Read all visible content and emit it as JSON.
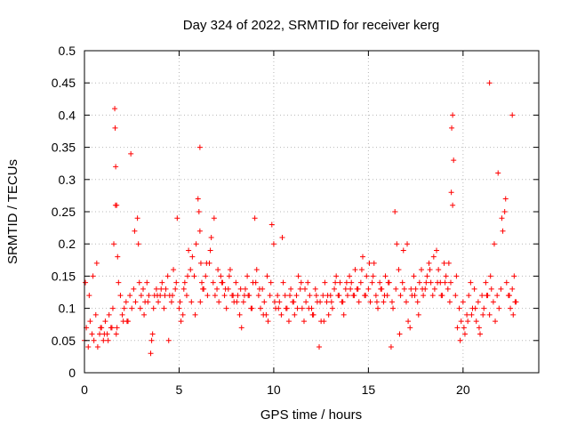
{
  "chart_data": {
    "type": "scatter",
    "title": "Day 324 of 2022, SRMTID for receiver kerg",
    "xlabel": "GPS time / hours",
    "ylabel": "SRMTID / TECUs",
    "xlim": [
      0,
      24
    ],
    "ylim": [
      0,
      0.5
    ],
    "x_ticks": [
      0,
      5,
      10,
      15,
      20
    ],
    "x_tick_labels": [
      "0",
      "5",
      "10",
      "15",
      "20"
    ],
    "y_ticks": [
      0,
      0.05,
      0.1,
      0.15,
      0.2,
      0.25,
      0.3,
      0.35,
      0.4,
      0.45,
      0.5
    ],
    "y_tick_labels": [
      "0",
      "0.05",
      "0.1",
      "0.15",
      "0.2",
      "0.25",
      "0.3",
      "0.35",
      "0.4",
      "0.45",
      "0.5"
    ],
    "grid": true,
    "marker": "plus",
    "color": "#ff0000",
    "series": [
      {
        "name": "SRMTID",
        "x": [
          0.0,
          0.1,
          0.2,
          0.3,
          0.4,
          0.5,
          0.6,
          0.7,
          0.8,
          0.9,
          1.0,
          1.1,
          1.2,
          1.3,
          1.4,
          1.5,
          1.55,
          1.6,
          1.62,
          1.65,
          1.7,
          1.75,
          1.8,
          1.9,
          2.0,
          2.1,
          2.2,
          2.3,
          2.4,
          2.5,
          2.6,
          2.7,
          2.8,
          2.85,
          2.9,
          3.0,
          3.1,
          3.2,
          3.3,
          3.4,
          3.5,
          3.55,
          3.6,
          3.7,
          3.8,
          3.9,
          4.0,
          4.1,
          4.2,
          4.3,
          4.4,
          4.5,
          4.6,
          4.7,
          4.8,
          4.9,
          5.0,
          5.1,
          5.2,
          5.3,
          5.4,
          5.5,
          5.6,
          5.7,
          5.8,
          5.9,
          6.0,
          6.05,
          6.1,
          6.15,
          6.2,
          6.3,
          6.4,
          6.5,
          6.6,
          6.7,
          6.8,
          6.9,
          7.0,
          7.1,
          7.2,
          7.3,
          7.4,
          7.5,
          7.6,
          7.7,
          7.8,
          7.9,
          8.0,
          8.1,
          8.2,
          8.3,
          8.4,
          8.5,
          8.6,
          8.7,
          8.8,
          8.9,
          9.0,
          9.1,
          9.2,
          9.3,
          9.4,
          9.5,
          9.6,
          9.7,
          9.8,
          9.9,
          10.0,
          10.1,
          10.2,
          10.3,
          10.4,
          10.5,
          10.6,
          10.7,
          10.8,
          10.9,
          11.0,
          11.1,
          11.2,
          11.3,
          11.4,
          11.5,
          11.6,
          11.7,
          11.8,
          11.9,
          12.0,
          12.1,
          12.2,
          12.3,
          12.4,
          12.5,
          12.6,
          12.7,
          12.8,
          12.9,
          13.0,
          13.1,
          13.2,
          13.3,
          13.4,
          13.5,
          13.6,
          13.7,
          13.8,
          13.9,
          14.0,
          14.1,
          14.2,
          14.3,
          14.4,
          14.5,
          14.6,
          14.7,
          14.8,
          14.9,
          15.0,
          15.1,
          15.2,
          15.3,
          15.4,
          15.5,
          15.6,
          15.7,
          15.8,
          15.9,
          16.0,
          16.1,
          16.2,
          16.3,
          16.4,
          16.5,
          16.6,
          16.7,
          16.8,
          16.9,
          17.0,
          17.1,
          17.2,
          17.3,
          17.4,
          17.5,
          17.6,
          17.7,
          17.8,
          17.9,
          18.0,
          18.1,
          18.2,
          18.3,
          18.4,
          18.5,
          18.6,
          18.7,
          18.8,
          18.9,
          19.0,
          19.1,
          19.2,
          19.3,
          19.35,
          19.4,
          19.5,
          19.6,
          19.7,
          19.8,
          19.9,
          20.0,
          20.1,
          20.2,
          20.3,
          20.4,
          20.5,
          20.6,
          20.7,
          20.8,
          20.9,
          21.0,
          21.1,
          21.2,
          21.3,
          21.4,
          21.5,
          21.6,
          21.7,
          21.8,
          21.9,
          22.0,
          22.1,
          22.2,
          22.3,
          22.4,
          22.5,
          22.6,
          22.7,
          22.8,
          0.05,
          0.25,
          0.45,
          0.65,
          0.85,
          1.05,
          1.25,
          1.45,
          1.68,
          1.72,
          2.05,
          2.25,
          2.45,
          2.65,
          2.95,
          3.15,
          3.35,
          3.65,
          3.85,
          4.05,
          4.25,
          4.45,
          4.65,
          4.85,
          5.05,
          5.25,
          5.45,
          5.65,
          5.85,
          6.12,
          6.25,
          6.45,
          6.65,
          6.85,
          7.05,
          7.25,
          7.45,
          7.65,
          7.85,
          8.05,
          8.25,
          8.45,
          8.65,
          8.85,
          9.05,
          9.25,
          9.45,
          9.65,
          9.85,
          10.05,
          10.25,
          10.45,
          10.65,
          10.85,
          11.05,
          11.25,
          11.45,
          11.65,
          11.85,
          12.05,
          12.25,
          12.45,
          12.65,
          12.85,
          13.05,
          13.25,
          13.45,
          13.65,
          13.85,
          14.05,
          14.25,
          14.45,
          14.65,
          14.85,
          15.05,
          15.25,
          15.45,
          15.65,
          15.85,
          16.05,
          16.25,
          16.45,
          16.65,
          16.85,
          17.05,
          17.25,
          17.45,
          17.65,
          17.85,
          18.05,
          18.25,
          18.45,
          18.65,
          18.85,
          19.05,
          19.25,
          19.45,
          19.65,
          19.85,
          20.05,
          20.25,
          20.45,
          20.65,
          20.85,
          21.05,
          21.25,
          21.45,
          21.65,
          21.85,
          22.05,
          22.25,
          22.45,
          22.65,
          22.75,
          19.38,
          19.45,
          21.4,
          22.6,
          1.64,
          6.1
        ],
        "y": [
          0.05,
          0.07,
          0.04,
          0.08,
          0.06,
          0.05,
          0.09,
          0.04,
          0.06,
          0.07,
          0.05,
          0.08,
          0.06,
          0.09,
          0.07,
          0.1,
          0.2,
          0.41,
          0.38,
          0.32,
          0.26,
          0.18,
          0.14,
          0.12,
          0.09,
          0.1,
          0.11,
          0.08,
          0.12,
          0.1,
          0.13,
          0.11,
          0.24,
          0.2,
          0.14,
          0.12,
          0.13,
          0.11,
          0.14,
          0.12,
          0.03,
          0.05,
          0.06,
          0.12,
          0.13,
          0.11,
          0.12,
          0.14,
          0.1,
          0.13,
          0.15,
          0.12,
          0.11,
          0.16,
          0.13,
          0.24,
          0.1,
          0.08,
          0.09,
          0.14,
          0.12,
          0.19,
          0.16,
          0.18,
          0.15,
          0.2,
          0.27,
          0.25,
          0.22,
          0.17,
          0.14,
          0.13,
          0.15,
          0.12,
          0.17,
          0.21,
          0.14,
          0.12,
          0.13,
          0.11,
          0.15,
          0.14,
          0.12,
          0.1,
          0.13,
          0.16,
          0.12,
          0.11,
          0.14,
          0.12,
          0.09,
          0.07,
          0.11,
          0.13,
          0.15,
          0.12,
          0.1,
          0.14,
          0.24,
          0.16,
          0.12,
          0.1,
          0.13,
          0.11,
          0.09,
          0.08,
          0.12,
          0.23,
          0.2,
          0.1,
          0.12,
          0.11,
          0.09,
          0.14,
          0.12,
          0.1,
          0.08,
          0.13,
          0.11,
          0.09,
          0.12,
          0.15,
          0.13,
          0.1,
          0.08,
          0.11,
          0.14,
          0.12,
          0.1,
          0.09,
          0.13,
          0.11,
          0.04,
          0.08,
          0.12,
          0.14,
          0.11,
          0.09,
          0.12,
          0.1,
          0.13,
          0.15,
          0.12,
          0.14,
          0.11,
          0.09,
          0.13,
          0.12,
          0.15,
          0.14,
          0.12,
          0.16,
          0.13,
          0.11,
          0.14,
          0.18,
          0.12,
          0.15,
          0.13,
          0.11,
          0.14,
          0.17,
          0.12,
          0.1,
          0.14,
          0.13,
          0.11,
          0.15,
          0.12,
          0.14,
          0.04,
          0.1,
          0.25,
          0.2,
          0.16,
          0.12,
          0.14,
          0.13,
          0.11,
          0.08,
          0.07,
          0.12,
          0.15,
          0.13,
          0.11,
          0.14,
          0.16,
          0.12,
          0.13,
          0.15,
          0.17,
          0.14,
          0.12,
          0.13,
          0.19,
          0.16,
          0.14,
          0.12,
          0.17,
          0.15,
          0.13,
          0.11,
          0.14,
          0.38,
          0.33,
          0.12,
          0.07,
          0.1,
          0.08,
          0.11,
          0.06,
          0.09,
          0.12,
          0.14,
          0.1,
          0.13,
          0.08,
          0.11,
          0.06,
          0.12,
          0.1,
          0.14,
          0.12,
          0.09,
          0.13,
          0.11,
          0.08,
          0.12,
          0.1,
          0.13,
          0.22,
          0.25,
          0.14,
          0.12,
          0.1,
          0.13,
          0.15,
          0.11,
          0.14,
          0.12,
          0.15,
          0.17,
          0.07,
          0.06,
          0.05,
          0.07,
          0.06,
          0.07,
          0.08,
          0.08,
          0.34,
          0.22,
          0.1,
          0.09,
          0.11,
          0.1,
          0.12,
          0.13,
          0.12,
          0.05,
          0.12,
          0.14,
          0.11,
          0.13,
          0.15,
          0.11,
          0.09,
          0.11,
          0.13,
          0.17,
          0.19,
          0.24,
          0.16,
          0.14,
          0.13,
          0.15,
          0.12,
          0.11,
          0.13,
          0.12,
          0.12,
          0.1,
          0.14,
          0.13,
          0.09,
          0.15,
          0.14,
          0.11,
          0.1,
          0.21,
          0.1,
          0.12,
          0.11,
          0.1,
          0.14,
          0.13,
          0.1,
          0.09,
          0.12,
          0.11,
          0.08,
          0.12,
          0.11,
          0.14,
          0.12,
          0.11,
          0.14,
          0.13,
          0.12,
          0.13,
          0.16,
          0.12,
          0.17,
          0.15,
          0.11,
          0.13,
          0.12,
          0.14,
          0.11,
          0.13,
          0.06,
          0.19,
          0.2,
          0.13,
          0.12,
          0.09,
          0.13,
          0.14,
          0.16,
          0.18,
          0.14,
          0.12,
          0.14,
          0.17,
          0.26,
          0.15,
          0.05,
          0.07,
          0.08,
          0.09,
          0.1,
          0.07,
          0.09,
          0.12,
          0.15,
          0.2,
          0.31,
          0.24,
          0.27,
          0.12,
          0.09,
          0.11,
          0.28,
          0.4,
          0.45,
          0.4,
          0.26,
          0.35
        ]
      }
    ]
  }
}
